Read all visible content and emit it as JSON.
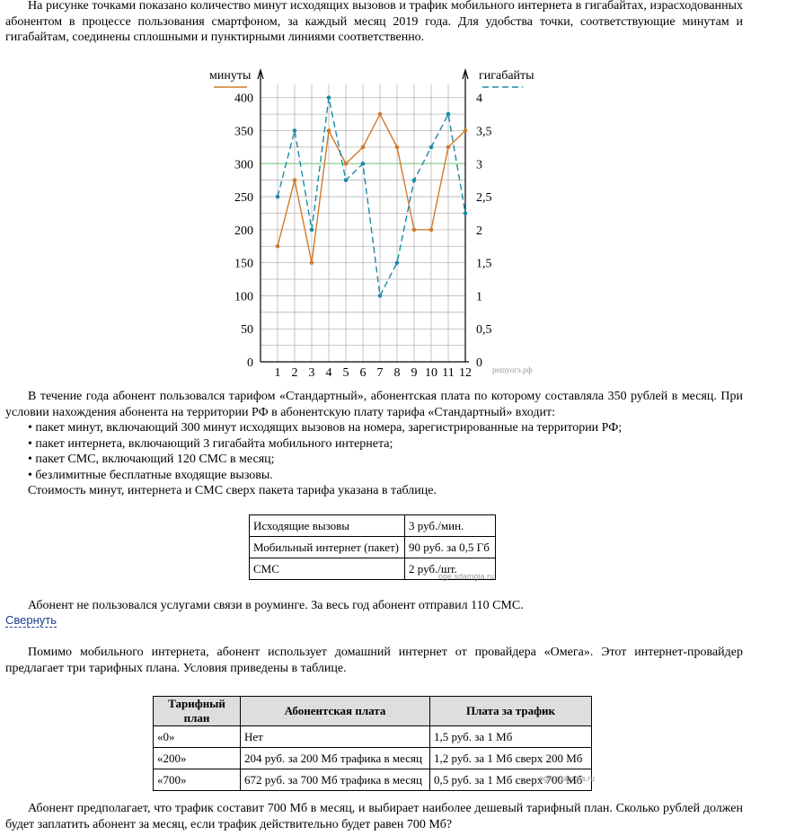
{
  "intro": "На рисунке точками показано количество минут исходящих вызовов и трафик мобильного интернета в гигабайтах, израсходованных абонентом в процессе пользования смартфоном, за каждый месяц 2019 года. Для удобства точки, соответствующие минутам и гигабайтам, соединены сплошными и пунктирными линиями соответственно.",
  "chart_data": {
    "type": "line",
    "x": [
      1,
      2,
      3,
      4,
      5,
      6,
      7,
      8,
      9,
      10,
      11,
      12
    ],
    "x_ticks": [
      "1",
      "2",
      "3",
      "4",
      "5",
      "6",
      "7",
      "8",
      "9",
      "10",
      "11",
      "12"
    ],
    "left_axis_label": "минуты",
    "right_axis_label": "гигабайты",
    "left_ticks": [
      "0",
      "50",
      "100",
      "150",
      "200",
      "250",
      "300",
      "350",
      "400"
    ],
    "right_ticks": [
      "0",
      "0,5",
      "1",
      "1,5",
      "2",
      "2,5",
      "3",
      "3,5",
      "4"
    ],
    "ylim_left": [
      0,
      420
    ],
    "ylim_right": [
      0,
      4.2
    ],
    "grid": true,
    "reference_line": 300,
    "series": [
      {
        "axis": "left",
        "style": "solid",
        "color": "#d07a2a",
        "values": [
          175,
          275,
          150,
          350,
          300,
          325,
          375,
          325,
          200,
          200,
          325,
          350
        ]
      },
      {
        "axis": "right",
        "style": "dashed",
        "color": "#1a8aa6",
        "values": [
          2.5,
          3.5,
          2,
          4,
          2.75,
          3,
          1,
          1.5,
          2.75,
          3.25,
          3.75,
          2.25
        ]
      }
    ],
    "watermark": "решуогэ.рф"
  },
  "tariff": {
    "p1": "В течение года абонент пользовался тарифом «Стандартный», абонентская плата по которому составляла 350 рублей в месяц. При условии нахождения абонента на территории РФ в абонентскую плату тарифа «Стандартный» входит:",
    "bullets": [
      "• пакет минут, включающий 300 минут исходящих вызовов на номера, зарегистрированные на территории РФ;",
      "• пакет интернета, включающий 3 гигабайта мобильного интернета;",
      "• пакет СМС, включающий 120 СМС в месяц;",
      "• безлимитные бесплатные входящие вызовы."
    ],
    "p2": "Стоимость минут, интернета и СМС сверх пакета тарифа указана в таблице."
  },
  "table1": [
    [
      "Исходящие вызовы",
      "3 руб./мин."
    ],
    [
      "Мобильный интернет (пакет)",
      "90 руб. за 0,5 Гб"
    ],
    [
      "СМС",
      "2 руб./шт."
    ]
  ],
  "watermark_table": "oge.sdamgia.ru",
  "roaming": "Абонент не пользовался услугами связи в роуминге. За весь год абонент отправил 110 СМС.",
  "collapse_link": "Свернуть",
  "home": "Помимо мобильного интернета, абонент использует домашний интернет от провайдера «Омега». Этот интернет-провайдер предлагает три тарифных плана. Условия приведены в таблице.",
  "table2": {
    "headers": [
      "Тарифный план",
      "Абонентская плата",
      "Плата за трафик"
    ],
    "rows": [
      [
        "«0»",
        "Нет",
        "1,5 руб. за 1 Мб"
      ],
      [
        "«200»",
        "204 руб. за 200 Мб трафика в месяц",
        "1,2 руб. за 1 Мб сверх 200 Мб"
      ],
      [
        "«700»",
        "672 руб. за 700 Мб трафика в месяц",
        "0,5 руб. за 1 Мб сверх 700 Мб"
      ]
    ]
  },
  "question": "Абонент предполагает, что трафик составит 700 Мб в месяц, и выбирает наиболее дешевый тарифный план. Сколько рублей должен будет заплатить абонент за месяц, если трафик действительно будет равен 700 Мб?"
}
